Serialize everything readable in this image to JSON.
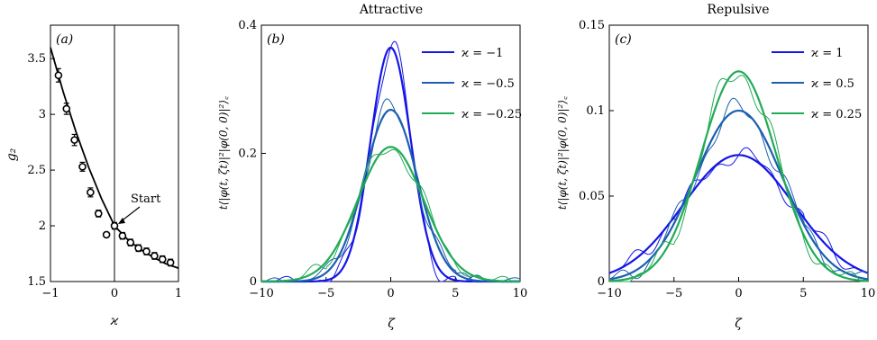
{
  "chart_data": [
    {
      "type": "scatter",
      "panel_label": "(a)",
      "title": "",
      "xlabel": "ϰ",
      "ylabel": "g₂",
      "xlim": [
        -1,
        1
      ],
      "ylim": [
        1.5,
        3.8
      ],
      "xticks": [
        -1,
        0,
        1
      ],
      "xtick_labels": [
        "−1",
        "0",
        "1"
      ],
      "yticks": [
        1.5,
        2,
        2.5,
        3,
        3.5
      ],
      "ytick_labels": [
        "1.5",
        "2",
        "2.5",
        "3",
        "3.5"
      ],
      "points": {
        "x": [
          -0.875,
          -0.75,
          -0.625,
          -0.5,
          -0.375,
          -0.25,
          -0.125,
          0,
          0.125,
          0.25,
          0.375,
          0.5,
          0.625,
          0.75,
          0.875
        ],
        "y": [
          3.35,
          3.05,
          2.77,
          2.53,
          2.3,
          2.11,
          1.92,
          2.0,
          1.91,
          1.85,
          1.8,
          1.77,
          1.73,
          1.7,
          1.67
        ],
        "err": [
          0.06,
          0.05,
          0.05,
          0.04,
          0.04,
          0.03,
          0.02,
          0.03,
          0.03,
          0.03,
          0.03,
          0.03,
          0.03,
          0.03,
          0.03
        ]
      },
      "curve": {
        "x": [
          -1,
          -0.8,
          -0.6,
          -0.4,
          -0.2,
          0,
          0.2,
          0.4,
          0.6,
          0.8,
          1
        ],
        "y": [
          3.6,
          3.2,
          2.84,
          2.52,
          2.24,
          2.0,
          1.88,
          1.79,
          1.72,
          1.66,
          1.62
        ]
      },
      "vline_x": 0,
      "annotation": "Start",
      "annotation_target": [
        0,
        2.0
      ],
      "grid": false
    },
    {
      "type": "line",
      "panel_label": "(b)",
      "title": "Attractive",
      "xlabel": "ζ",
      "ylabel": "t⟨|φ(t, ζt)|²|φ(0, 0)|²⟩꜀",
      "xlim": [
        -10,
        10
      ],
      "ylim": [
        0,
        0.4
      ],
      "xticks": [
        -10,
        -5,
        0,
        5,
        10
      ],
      "xtick_labels": [
        "−10",
        "−5",
        "0",
        "5",
        "10"
      ],
      "yticks": [
        0,
        0.2,
        0.4
      ],
      "ytick_labels": [
        "0",
        "0.2",
        "0.4"
      ],
      "legend_position": "top-right",
      "series": [
        {
          "name": "ϰ = −1",
          "color": "#1515e6",
          "peak": 0.365,
          "width": 1.55
        },
        {
          "name": "ϰ = −0.5",
          "color": "#1c5fb0",
          "peak": 0.268,
          "width": 2.05
        },
        {
          "name": "ϰ = −0.25",
          "color": "#22ab56",
          "peak": 0.21,
          "width": 2.55
        }
      ],
      "x": [
        -10,
        -8,
        -6,
        -5,
        -4,
        -3,
        -2,
        -1,
        0,
        1,
        2,
        3,
        4,
        5,
        6,
        8,
        10
      ],
      "grid": false
    },
    {
      "type": "line",
      "panel_label": "(c)",
      "title": "Repulsive",
      "xlabel": "ζ",
      "ylabel": "t⟨|φ(t, ζt)|²|φ(0, 0)|²⟩꜀",
      "xlim": [
        -10,
        10
      ],
      "ylim": [
        0,
        0.15
      ],
      "xticks": [
        -10,
        -5,
        0,
        5,
        10
      ],
      "xtick_labels": [
        "−10",
        "−5",
        "0",
        "5",
        "10"
      ],
      "yticks": [
        0,
        0.05,
        0.1,
        0.15
      ],
      "ytick_labels": [
        "0",
        "0.05",
        "0.1",
        "0.15"
      ],
      "legend_position": "top-right",
      "series": [
        {
          "name": "ϰ = 1",
          "color": "#1515e6",
          "peak": 0.074,
          "width": 4.3
        },
        {
          "name": "ϰ = 0.5",
          "color": "#1c5fb0",
          "peak": 0.1,
          "width": 3.4
        },
        {
          "name": "ϰ = 0.25",
          "color": "#22ab56",
          "peak": 0.123,
          "width": 2.9
        }
      ],
      "x": [
        -10,
        -8,
        -6,
        -5,
        -4,
        -3,
        -2,
        -1,
        0,
        1,
        2,
        3,
        4,
        5,
        6,
        8,
        10
      ],
      "grid": false
    }
  ]
}
